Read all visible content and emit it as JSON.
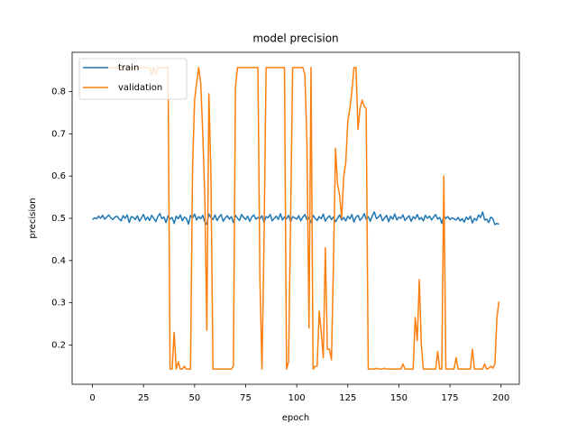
{
  "chart_data": {
    "type": "line",
    "title": "model precision",
    "x_label": "epoch",
    "y_label": "precision",
    "x": [
      0,
      1,
      2,
      3,
      4,
      5,
      6,
      7,
      8,
      9,
      10,
      11,
      12,
      13,
      14,
      15,
      16,
      17,
      18,
      19,
      20,
      21,
      22,
      23,
      24,
      25,
      26,
      27,
      28,
      29,
      30,
      31,
      32,
      33,
      34,
      35,
      36,
      37,
      38,
      39,
      40,
      41,
      42,
      43,
      44,
      45,
      46,
      47,
      48,
      49,
      50,
      51,
      52,
      53,
      54,
      55,
      56,
      57,
      58,
      59,
      60,
      61,
      62,
      63,
      64,
      65,
      66,
      67,
      68,
      69,
      70,
      71,
      72,
      73,
      74,
      75,
      76,
      77,
      78,
      79,
      80,
      81,
      82,
      83,
      84,
      85,
      86,
      87,
      88,
      89,
      90,
      91,
      92,
      93,
      94,
      95,
      96,
      97,
      98,
      99,
      100,
      101,
      102,
      103,
      104,
      105,
      106,
      107,
      108,
      109,
      110,
      111,
      112,
      113,
      114,
      115,
      116,
      117,
      118,
      119,
      120,
      121,
      122,
      123,
      124,
      125,
      126,
      127,
      128,
      129,
      130,
      131,
      132,
      133,
      134,
      135,
      136,
      137,
      138,
      139,
      140,
      141,
      142,
      143,
      144,
      145,
      146,
      147,
      148,
      149,
      150,
      151,
      152,
      153,
      154,
      155,
      156,
      157,
      158,
      159,
      160,
      161,
      162,
      163,
      164,
      165,
      166,
      167,
      168,
      169,
      170,
      171,
      172,
      173,
      174,
      175,
      176,
      177,
      178,
      179,
      180,
      181,
      182,
      183,
      184,
      185,
      186,
      187,
      188,
      189,
      190,
      191,
      192,
      193,
      194,
      195,
      196,
      197,
      198,
      199
    ],
    "series": [
      {
        "name": "train",
        "color": "#1f77b4",
        "values": [
          0.497,
          0.501,
          0.499,
          0.505,
          0.5,
          0.507,
          0.498,
          0.503,
          0.508,
          0.501,
          0.497,
          0.503,
          0.505,
          0.499,
          0.494,
          0.506,
          0.5,
          0.508,
          0.49,
          0.504,
          0.502,
          0.497,
          0.506,
          0.493,
          0.501,
          0.509,
          0.496,
          0.503,
          0.495,
          0.507,
          0.5,
          0.492,
          0.504,
          0.511,
          0.499,
          0.503,
          0.49,
          0.506,
          0.498,
          0.502,
          0.488,
          0.505,
          0.499,
          0.508,
          0.494,
          0.503,
          0.5,
          0.486,
          0.507,
          0.501,
          0.51,
          0.496,
          0.504,
          0.499,
          0.507,
          0.491,
          0.486,
          0.51,
          0.502,
          0.497,
          0.508,
          0.495,
          0.503,
          0.509,
          0.493,
          0.501,
          0.506,
          0.498,
          0.504,
          0.49,
          0.507,
          0.5,
          0.495,
          0.509,
          0.502,
          0.497,
          0.505,
          0.493,
          0.503,
          0.508,
          0.498,
          0.502,
          0.499,
          0.506,
          0.49,
          0.504,
          0.501,
          0.509,
          0.494,
          0.5,
          0.505,
          0.497,
          0.511,
          0.496,
          0.503,
          0.499,
          0.507,
          0.492,
          0.504,
          0.501,
          0.498,
          0.506,
          0.494,
          0.503,
          0.509,
          0.497,
          0.502,
          0.49,
          0.507,
          0.5,
          0.495,
          0.504,
          0.499,
          0.51,
          0.493,
          0.501,
          0.506,
          0.497,
          0.503,
          0.492,
          0.5,
          0.508,
          0.496,
          0.502,
          0.494,
          0.505,
          0.499,
          0.509,
          0.491,
          0.503,
          0.507,
          0.495,
          0.501,
          0.511,
          0.498,
          0.504,
          0.493,
          0.506,
          0.515,
          0.499,
          0.503,
          0.509,
          0.494,
          0.501,
          0.507,
          0.492,
          0.505,
          0.498,
          0.51,
          0.496,
          0.503,
          0.5,
          0.508,
          0.495,
          0.501,
          0.506,
          0.493,
          0.504,
          0.499,
          0.509,
          0.497,
          0.502,
          0.494,
          0.507,
          0.5,
          0.505,
          0.496,
          0.503,
          0.509,
          0.498,
          0.502,
          0.488,
          0.506,
          0.5,
          0.504,
          0.497,
          0.501,
          0.499,
          0.496,
          0.502,
          0.494,
          0.499,
          0.491,
          0.503,
          0.497,
          0.505,
          0.489,
          0.5,
          0.495,
          0.508,
          0.502,
          0.515,
          0.496,
          0.498,
          0.49,
          0.503,
          0.499,
          0.485,
          0.488,
          0.486
        ]
      },
      {
        "name": "validation",
        "color": "#ff7f0e",
        "values": [
          0.857,
          0.857,
          0.857,
          0.857,
          0.857,
          0.857,
          0.857,
          0.857,
          0.857,
          0.857,
          0.857,
          0.857,
          0.857,
          0.857,
          0.857,
          0.857,
          0.857,
          0.857,
          0.857,
          0.857,
          0.857,
          0.857,
          0.857,
          0.857,
          0.857,
          0.857,
          0.857,
          0.857,
          0.857,
          0.84,
          0.857,
          0.84,
          0.857,
          0.857,
          0.857,
          0.857,
          0.857,
          0.857,
          0.143,
          0.143,
          0.23,
          0.143,
          0.16,
          0.143,
          0.143,
          0.15,
          0.143,
          0.143,
          0.143,
          0.62,
          0.78,
          0.82,
          0.857,
          0.82,
          0.7,
          0.55,
          0.235,
          0.795,
          0.6,
          0.143,
          0.143,
          0.143,
          0.143,
          0.143,
          0.143,
          0.143,
          0.143,
          0.143,
          0.143,
          0.15,
          0.81,
          0.857,
          0.857,
          0.857,
          0.857,
          0.857,
          0.857,
          0.857,
          0.857,
          0.857,
          0.857,
          0.857,
          0.35,
          0.143,
          0.45,
          0.857,
          0.857,
          0.857,
          0.857,
          0.857,
          0.857,
          0.857,
          0.857,
          0.857,
          0.857,
          0.143,
          0.16,
          0.5,
          0.857,
          0.857,
          0.857,
          0.857,
          0.857,
          0.857,
          0.84,
          0.68,
          0.24,
          0.857,
          0.143,
          0.15,
          0.15,
          0.28,
          0.23,
          0.17,
          0.43,
          0.19,
          0.19,
          0.165,
          0.4,
          0.665,
          0.58,
          0.555,
          0.5,
          0.6,
          0.63,
          0.73,
          0.76,
          0.8,
          0.857,
          0.857,
          0.71,
          0.76,
          0.78,
          0.765,
          0.76,
          0.143,
          0.143,
          0.143,
          0.143,
          0.145,
          0.143,
          0.143,
          0.143,
          0.145,
          0.143,
          0.143,
          0.143,
          0.143,
          0.143,
          0.143,
          0.143,
          0.143,
          0.155,
          0.143,
          0.143,
          0.143,
          0.143,
          0.143,
          0.265,
          0.21,
          0.355,
          0.2,
          0.143,
          0.143,
          0.143,
          0.143,
          0.143,
          0.143,
          0.143,
          0.185,
          0.143,
          0.143,
          0.6,
          0.143,
          0.143,
          0.143,
          0.143,
          0.143,
          0.17,
          0.143,
          0.143,
          0.143,
          0.143,
          0.143,
          0.143,
          0.143,
          0.19,
          0.143,
          0.143,
          0.143,
          0.143,
          0.143,
          0.155,
          0.143,
          0.145,
          0.15,
          0.145,
          0.155,
          0.265,
          0.303
        ]
      }
    ],
    "xlim": [
      -9.95,
      208.95
    ],
    "xticks": [
      0,
      25,
      50,
      75,
      100,
      125,
      150,
      175,
      200
    ],
    "ylim": [
      0.107,
      0.893
    ],
    "yticks": [
      0.2,
      0.3,
      0.4,
      0.5,
      0.6,
      0.7,
      0.8
    ],
    "legend": "upper left"
  }
}
